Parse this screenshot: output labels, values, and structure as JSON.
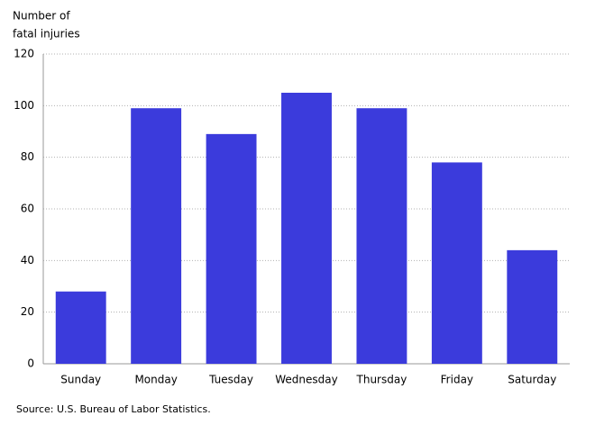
{
  "chart_data": {
    "type": "bar",
    "y_label": [
      "Number of",
      "fatal injuries"
    ],
    "categories": [
      "Sunday",
      "Monday",
      "Tuesday",
      "Wednesday",
      "Thursday",
      "Friday",
      "Saturday"
    ],
    "values": [
      28,
      99,
      89,
      105,
      99,
      78,
      44
    ],
    "color": "#3b3bdc",
    "ylim": [
      0,
      120
    ],
    "yticks": [
      0,
      20,
      40,
      60,
      80,
      100,
      120
    ],
    "grid": true,
    "source": "Source: U.S. Bureau of Labor Statistics."
  }
}
